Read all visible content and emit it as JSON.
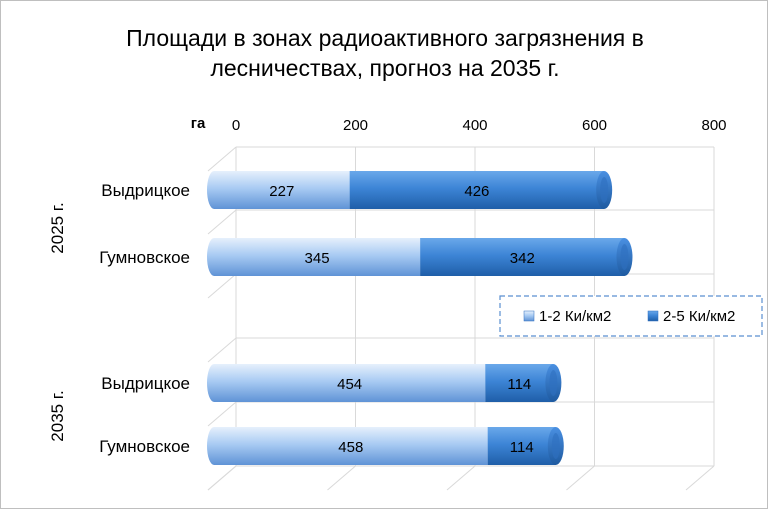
{
  "chart_data": {
    "type": "bar",
    "orientation": "horizontal",
    "stacked": true,
    "title_lines": [
      "Площади в зонах радиоактивного загрязнения в",
      "лесничествах, прогноз на 2035 г."
    ],
    "unit_label": "га",
    "xlim": [
      0,
      800
    ],
    "x_ticks": [
      "0",
      "200",
      "400",
      "600",
      "800"
    ],
    "groups": [
      {
        "label": "2025 г.",
        "categories": [
          {
            "label": "Выдрицкое",
            "values": [
              227,
              426
            ],
            "value_labels": [
              "227",
              "426"
            ]
          },
          {
            "label": "Гумновское",
            "values": [
              345,
              342
            ],
            "value_labels": [
              "345",
              "342"
            ]
          }
        ]
      },
      {
        "label": "2035 г.",
        "categories": [
          {
            "label": "Выдрицкое",
            "values": [
              454,
              114
            ],
            "value_labels": [
              "454",
              "114"
            ]
          },
          {
            "label": "Гумновское",
            "values": [
              458,
              114
            ],
            "value_labels": [
              "458",
              "114"
            ]
          }
        ]
      }
    ],
    "series": [
      {
        "name": "1-2 Ки/км2",
        "color": "#9dc3f0"
      },
      {
        "name": "2-5 Ки/км2",
        "color": "#3d85d6"
      }
    ],
    "legend_position": "right",
    "grid": true
  }
}
